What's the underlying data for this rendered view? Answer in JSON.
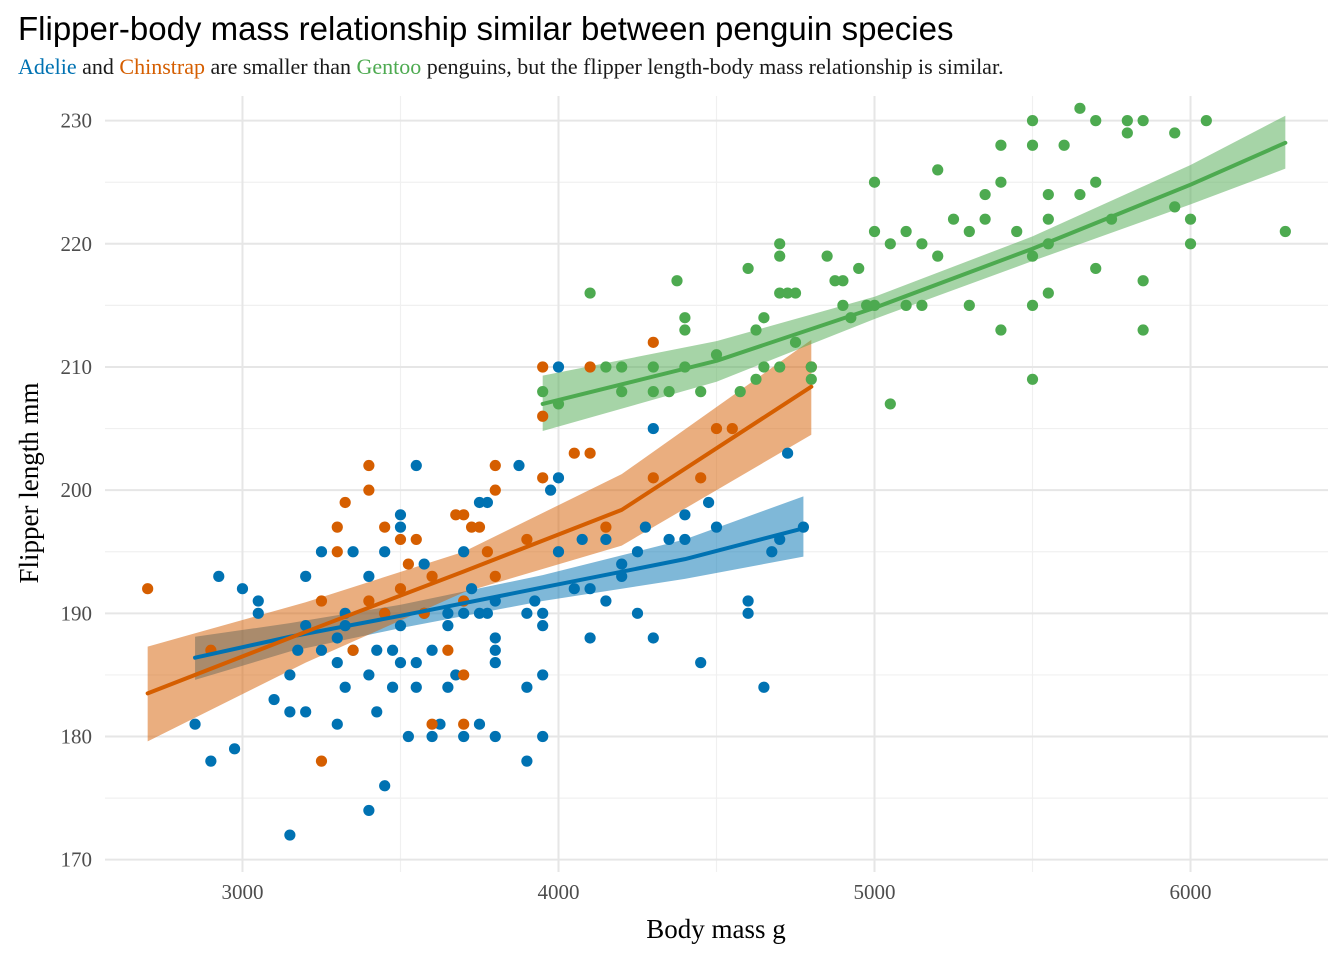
{
  "chart_data": {
    "type": "scatter",
    "title": "Flipper-body mass relationship similar between penguin species",
    "subtitle": {
      "adelie": "Adelie",
      "and": " and ",
      "chinstrap": "Chinstrap",
      "mid": " are smaller than ",
      "gentoo": "Gentoo",
      "rest": " penguins, but the flipper length-body mass relationship is similar."
    },
    "xlabel": "Body mass g",
    "ylabel": "Flipper length mm",
    "xlim": [
      2565,
      6435
    ],
    "ylim": [
      169,
      232
    ],
    "x_ticks": [
      3000,
      4000,
      5000,
      6000
    ],
    "y_ticks": [
      170,
      180,
      190,
      200,
      210,
      220,
      230
    ],
    "grid": true,
    "legend": "none",
    "series": [
      {
        "name": "Adelie",
        "color": "#0072B2",
        "points": [
          [
            2850,
            181
          ],
          [
            2900,
            178
          ],
          [
            2925,
            193
          ],
          [
            2975,
            179
          ],
          [
            3000,
            192
          ],
          [
            3050,
            191
          ],
          [
            3050,
            190
          ],
          [
            3100,
            183
          ],
          [
            3150,
            185
          ],
          [
            3150,
            182
          ],
          [
            3150,
            172
          ],
          [
            3175,
            187
          ],
          [
            3200,
            193
          ],
          [
            3200,
            182
          ],
          [
            3200,
            189
          ],
          [
            3250,
            195
          ],
          [
            3250,
            187
          ],
          [
            3300,
            181
          ],
          [
            3300,
            188
          ],
          [
            3300,
            186
          ],
          [
            3325,
            184
          ],
          [
            3325,
            189
          ],
          [
            3325,
            190
          ],
          [
            3350,
            195
          ],
          [
            3350,
            187
          ],
          [
            3400,
            174
          ],
          [
            3400,
            185
          ],
          [
            3400,
            193
          ],
          [
            3425,
            182
          ],
          [
            3425,
            187
          ],
          [
            3450,
            195
          ],
          [
            3450,
            176
          ],
          [
            3450,
            190
          ],
          [
            3475,
            184
          ],
          [
            3475,
            187
          ],
          [
            3500,
            198
          ],
          [
            3500,
            197
          ],
          [
            3500,
            189
          ],
          [
            3500,
            186
          ],
          [
            3525,
            180
          ],
          [
            3550,
            202
          ],
          [
            3550,
            184
          ],
          [
            3550,
            186
          ],
          [
            3575,
            194
          ],
          [
            3575,
            190
          ],
          [
            3600,
            180
          ],
          [
            3600,
            187
          ],
          [
            3625,
            181
          ],
          [
            3650,
            190
          ],
          [
            3650,
            184
          ],
          [
            3650,
            189
          ],
          [
            3675,
            185
          ],
          [
            3700,
            180
          ],
          [
            3700,
            190
          ],
          [
            3700,
            195
          ],
          [
            3725,
            192
          ],
          [
            3750,
            199
          ],
          [
            3750,
            181
          ],
          [
            3750,
            190
          ],
          [
            3775,
            199
          ],
          [
            3775,
            190
          ],
          [
            3800,
            191
          ],
          [
            3800,
            188
          ],
          [
            3800,
            186
          ],
          [
            3800,
            187
          ],
          [
            3800,
            180
          ],
          [
            3875,
            202
          ],
          [
            3900,
            178
          ],
          [
            3900,
            184
          ],
          [
            3900,
            190
          ],
          [
            3925,
            191
          ],
          [
            3950,
            180
          ],
          [
            3950,
            185
          ],
          [
            3950,
            190
          ],
          [
            3950,
            189
          ],
          [
            3975,
            200
          ],
          [
            4000,
            210
          ],
          [
            4000,
            201
          ],
          [
            4000,
            195
          ],
          [
            4050,
            192
          ],
          [
            4075,
            196
          ],
          [
            4100,
            192
          ],
          [
            4100,
            188
          ],
          [
            4150,
            196
          ],
          [
            4150,
            191
          ],
          [
            4200,
            193
          ],
          [
            4200,
            194
          ],
          [
            4250,
            195
          ],
          [
            4250,
            190
          ],
          [
            4275,
            197
          ],
          [
            4300,
            188
          ],
          [
            4300,
            205
          ],
          [
            4350,
            196
          ],
          [
            4400,
            196
          ],
          [
            4400,
            198
          ],
          [
            4450,
            186
          ],
          [
            4475,
            199
          ],
          [
            4500,
            197
          ],
          [
            4600,
            191
          ],
          [
            4600,
            190
          ],
          [
            4650,
            184
          ],
          [
            4675,
            195
          ],
          [
            4700,
            196
          ],
          [
            4725,
            203
          ],
          [
            4775,
            197
          ]
        ],
        "fit": [
          [
            2850,
            186.4
          ],
          [
            3150,
            188.1
          ],
          [
            3500,
            189.8
          ],
          [
            3950,
            192.1
          ],
          [
            4400,
            194.4
          ],
          [
            4775,
            196.9
          ]
        ],
        "band_upper": [
          [
            2850,
            188.1
          ],
          [
            3150,
            189.2
          ],
          [
            3500,
            190.7
          ],
          [
            3950,
            193.1
          ],
          [
            4400,
            196.0
          ],
          [
            4775,
            199.5
          ]
        ],
        "band_lower": [
          [
            2850,
            184.6
          ],
          [
            3150,
            186.9
          ],
          [
            3500,
            188.8
          ],
          [
            3950,
            191.0
          ],
          [
            4400,
            192.8
          ],
          [
            4775,
            194.6
          ]
        ]
      },
      {
        "name": "Chinstrap",
        "color": "#D55E00",
        "points": [
          [
            2700,
            192
          ],
          [
            2900,
            187
          ],
          [
            3250,
            191
          ],
          [
            3250,
            178
          ],
          [
            3300,
            197
          ],
          [
            3300,
            195
          ],
          [
            3325,
            199
          ],
          [
            3350,
            187
          ],
          [
            3400,
            202
          ],
          [
            3400,
            200
          ],
          [
            3400,
            191
          ],
          [
            3450,
            197
          ],
          [
            3450,
            190
          ],
          [
            3500,
            196
          ],
          [
            3500,
            192
          ],
          [
            3525,
            194
          ],
          [
            3550,
            196
          ],
          [
            3575,
            190
          ],
          [
            3600,
            181
          ],
          [
            3600,
            193
          ],
          [
            3650,
            187
          ],
          [
            3675,
            198
          ],
          [
            3700,
            198
          ],
          [
            3700,
            185
          ],
          [
            3700,
            181
          ],
          [
            3700,
            191
          ],
          [
            3725,
            197
          ],
          [
            3750,
            197
          ],
          [
            3775,
            195
          ],
          [
            3800,
            202
          ],
          [
            3800,
            200
          ],
          [
            3800,
            193
          ],
          [
            3900,
            196
          ],
          [
            3950,
            201
          ],
          [
            3950,
            206
          ],
          [
            3950,
            210
          ],
          [
            4050,
            203
          ],
          [
            4100,
            210
          ],
          [
            4100,
            203
          ],
          [
            4150,
            197
          ],
          [
            4300,
            212
          ],
          [
            4300,
            201
          ],
          [
            4450,
            201
          ],
          [
            4500,
            205
          ],
          [
            4550,
            205
          ],
          [
            4800,
            210
          ]
        ],
        "fit": [
          [
            2700,
            183.5
          ],
          [
            3200,
            188.5
          ],
          [
            3700,
            193.4
          ],
          [
            4200,
            198.4
          ],
          [
            4800,
            208.4
          ]
        ],
        "band_upper": [
          [
            2700,
            187.3
          ],
          [
            3200,
            190.9
          ],
          [
            3700,
            195.0
          ],
          [
            4200,
            201.3
          ],
          [
            4800,
            212.2
          ]
        ],
        "band_lower": [
          [
            2700,
            179.6
          ],
          [
            3200,
            186.0
          ],
          [
            3700,
            191.7
          ],
          [
            4200,
            195.5
          ],
          [
            4800,
            204.5
          ]
        ]
      },
      {
        "name": "Gentoo",
        "color": "#4DAA50",
        "points": [
          [
            3950,
            208
          ],
          [
            4000,
            207
          ],
          [
            4100,
            216
          ],
          [
            4150,
            210
          ],
          [
            4200,
            210
          ],
          [
            4200,
            208
          ],
          [
            4300,
            210
          ],
          [
            4300,
            208
          ],
          [
            4350,
            208
          ],
          [
            4375,
            217
          ],
          [
            4400,
            214
          ],
          [
            4400,
            213
          ],
          [
            4400,
            210
          ],
          [
            4450,
            208
          ],
          [
            4500,
            211
          ],
          [
            4575,
            208
          ],
          [
            4600,
            218
          ],
          [
            4625,
            209
          ],
          [
            4625,
            213
          ],
          [
            4650,
            214
          ],
          [
            4650,
            210
          ],
          [
            4700,
            216
          ],
          [
            4700,
            219
          ],
          [
            4700,
            220
          ],
          [
            4700,
            210
          ],
          [
            4725,
            216
          ],
          [
            4750,
            212
          ],
          [
            4750,
            216
          ],
          [
            4800,
            210
          ],
          [
            4800,
            209
          ],
          [
            4850,
            219
          ],
          [
            4875,
            217
          ],
          [
            4900,
            217
          ],
          [
            4900,
            215
          ],
          [
            4925,
            214
          ],
          [
            4950,
            218
          ],
          [
            4975,
            215
          ],
          [
            5000,
            225
          ],
          [
            5000,
            221
          ],
          [
            5000,
            215
          ],
          [
            5050,
            220
          ],
          [
            5050,
            207
          ],
          [
            5100,
            221
          ],
          [
            5100,
            215
          ],
          [
            5150,
            220
          ],
          [
            5150,
            215
          ],
          [
            5200,
            226
          ],
          [
            5200,
            219
          ],
          [
            5250,
            222
          ],
          [
            5300,
            221
          ],
          [
            5300,
            215
          ],
          [
            5350,
            224
          ],
          [
            5350,
            222
          ],
          [
            5400,
            228
          ],
          [
            5400,
            225
          ],
          [
            5400,
            213
          ],
          [
            5450,
            221
          ],
          [
            5500,
            230
          ],
          [
            5500,
            228
          ],
          [
            5500,
            219
          ],
          [
            5500,
            215
          ],
          [
            5500,
            209
          ],
          [
            5550,
            224
          ],
          [
            5550,
            222
          ],
          [
            5550,
            220
          ],
          [
            5550,
            216
          ],
          [
            5600,
            228
          ],
          [
            5650,
            231
          ],
          [
            5650,
            224
          ],
          [
            5700,
            230
          ],
          [
            5700,
            225
          ],
          [
            5700,
            218
          ],
          [
            5750,
            222
          ],
          [
            5800,
            230
          ],
          [
            5800,
            229
          ],
          [
            5850,
            230
          ],
          [
            5850,
            217
          ],
          [
            5850,
            213
          ],
          [
            5950,
            229
          ],
          [
            5950,
            223
          ],
          [
            6000,
            222
          ],
          [
            6000,
            220
          ],
          [
            6050,
            230
          ],
          [
            6300,
            221
          ]
        ],
        "fit": [
          [
            3950,
            207.0
          ],
          [
            4500,
            210.5
          ],
          [
            5000,
            214.8
          ],
          [
            5500,
            219.6
          ],
          [
            6000,
            224.8
          ],
          [
            6300,
            228.2
          ]
        ],
        "band_upper": [
          [
            3950,
            209.3
          ],
          [
            4500,
            212.1
          ],
          [
            5000,
            215.7
          ],
          [
            5500,
            220.6
          ],
          [
            6000,
            226.4
          ],
          [
            6300,
            230.4
          ]
        ],
        "band_lower": [
          [
            3950,
            204.8
          ],
          [
            4500,
            208.8
          ],
          [
            5000,
            213.9
          ],
          [
            5500,
            218.6
          ],
          [
            6000,
            223.2
          ],
          [
            6300,
            226.1
          ]
        ]
      }
    ]
  }
}
